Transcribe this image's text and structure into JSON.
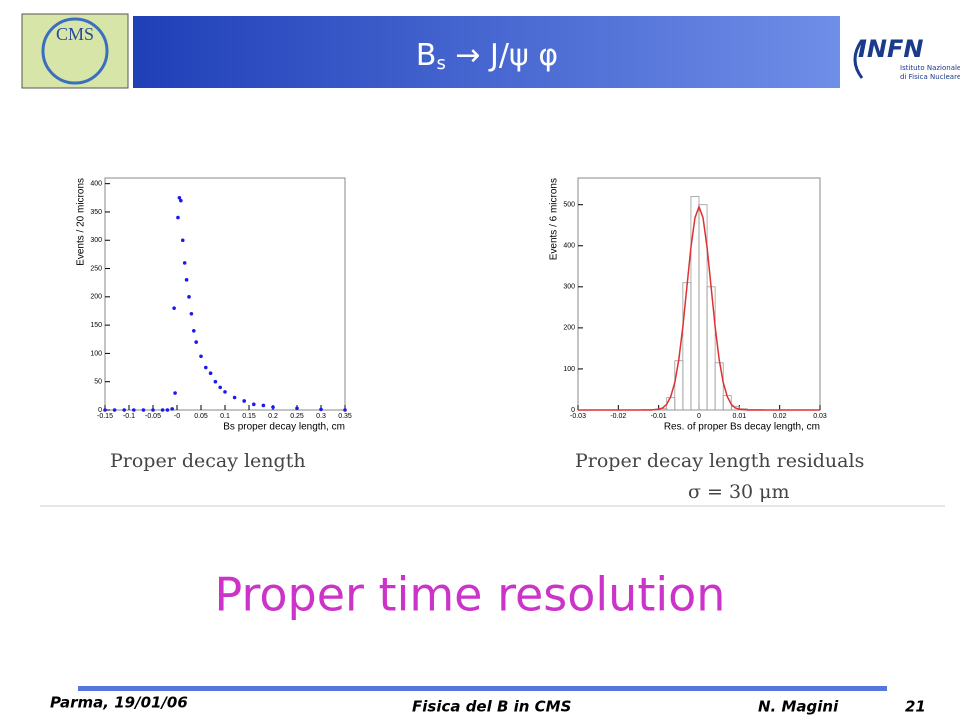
{
  "header": {
    "title_main": "B",
    "title_sub": "s",
    "title_rest": " → J/ψ φ",
    "logo_left": "CMS",
    "logo_right": "INFN",
    "logo_right_sub1": "Istituto Nazionale",
    "logo_right_sub2": "di Fisica Nucleare"
  },
  "chart_data": [
    {
      "type": "scatter",
      "ylabel": "Events / 20 microns",
      "xlabel": "Bs proper decay length, cm",
      "color": "#1a1aee",
      "x": [
        -0.15,
        -0.13,
        -0.11,
        -0.09,
        -0.07,
        -0.05,
        -0.03,
        -0.02,
        -0.01,
        -0.006,
        -0.004,
        0.002,
        0.005,
        0.008,
        0.012,
        0.016,
        0.02,
        0.025,
        0.03,
        0.035,
        0.04,
        0.05,
        0.06,
        0.07,
        0.08,
        0.09,
        0.1,
        0.12,
        0.14,
        0.16,
        0.18,
        0.2,
        0.25,
        0.3,
        0.35
      ],
      "values": [
        0,
        0,
        0,
        0,
        0,
        0,
        0,
        0,
        2,
        180,
        30,
        340,
        375,
        370,
        300,
        260,
        230,
        200,
        170,
        140,
        120,
        95,
        75,
        65,
        50,
        40,
        32,
        22,
        16,
        10,
        8,
        5,
        3,
        1,
        0
      ],
      "xlim": [
        -0.15,
        0.35
      ],
      "ylim": [
        0,
        410
      ],
      "xticks": [
        -0.15,
        -0.1,
        -0.05,
        {
          "value": 0,
          "label": "-0"
        },
        0.05,
        0.1,
        0.15,
        0.2,
        0.25,
        0.3,
        0.35
      ],
      "yticks": [
        0,
        50,
        100,
        150,
        200,
        250,
        300,
        350,
        400
      ]
    },
    {
      "type": "histogram",
      "ylabel": "Events / 6 microns",
      "xlabel": "Res. of proper Bs decay length, cm",
      "color": "#9a9a9a",
      "bins": [
        -0.03,
        -0.028,
        -0.026,
        -0.024,
        -0.022,
        -0.02,
        -0.018,
        -0.016,
        -0.014,
        -0.012,
        -0.01,
        -0.008,
        -0.006,
        -0.004,
        -0.002,
        0,
        0.002,
        0.004,
        0.006,
        0.008,
        0.01,
        0.012,
        0.014,
        0.016,
        0.018,
        0.02,
        0.022,
        0.024,
        0.026,
        0.028,
        0.03
      ],
      "counts": [
        0,
        0,
        0,
        0,
        0,
        0,
        0,
        0,
        1,
        1,
        3,
        30,
        120,
        310,
        520,
        500,
        300,
        115,
        35,
        8,
        3,
        1,
        1,
        0,
        0,
        0,
        0,
        0,
        0,
        0
      ],
      "fit": {
        "color": "#e03030",
        "x": [
          -0.03,
          -0.012,
          -0.011,
          -0.01,
          -0.009,
          -0.008,
          -0.007,
          -0.006,
          -0.005,
          -0.004,
          -0.003,
          -0.002,
          -0.001,
          0,
          0.001,
          0.002,
          0.003,
          0.004,
          0.005,
          0.006,
          0.007,
          0.008,
          0.009,
          0.01,
          0.011,
          0.012,
          0.03
        ],
        "values": [
          0,
          0,
          1,
          2,
          5,
          14,
          33,
          67,
          123,
          203,
          300,
          396,
          468,
          495,
          468,
          396,
          300,
          203,
          123,
          67,
          33,
          14,
          5,
          2,
          1,
          0,
          0
        ]
      },
      "xlim": [
        -0.03,
        0.03
      ],
      "ylim": [
        0,
        565
      ],
      "xticks": [
        -0.03,
        -0.02,
        -0.01,
        0,
        0.01,
        0.02,
        0.03
      ],
      "yticks": [
        0,
        100,
        200,
        300,
        400,
        500
      ]
    }
  ],
  "captions": {
    "left": "Proper decay length",
    "right": "Proper decay length residuals",
    "sigma": "σ = 30 μm"
  },
  "headline": "Proper time resolution",
  "footer": {
    "place": "Parma, 19/01/06",
    "talk": "Fisica del B in CMS",
    "author": "N. Magini",
    "page": "21"
  }
}
